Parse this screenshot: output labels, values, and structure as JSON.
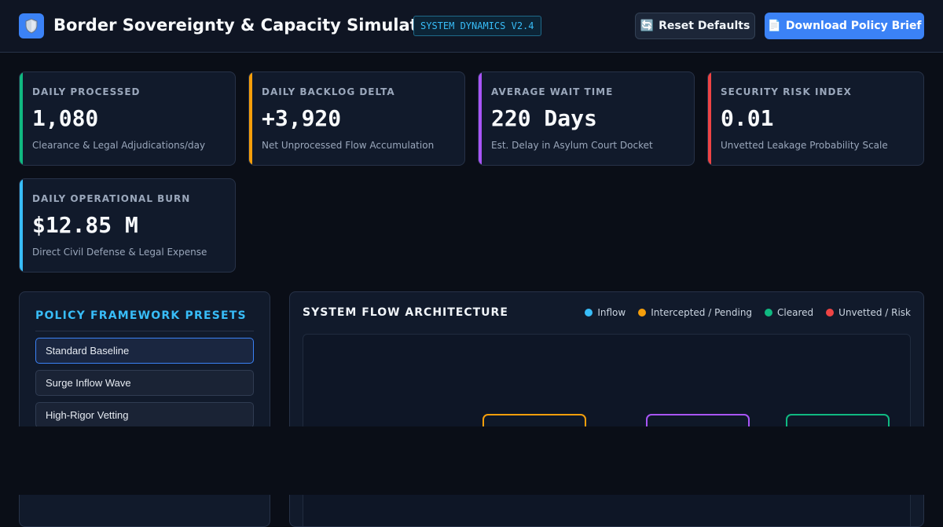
{
  "header": {
    "title": "Border Sovereignty & Capacity Simulator",
    "version_badge": "SYSTEM DYNAMICS V2.4",
    "logo_icon": "shield-icon",
    "reset_label": "Reset Defaults",
    "reset_icon": "🔄",
    "download_label": "Download Policy Brief",
    "download_icon": "📄"
  },
  "kpis": [
    {
      "label": "DAILY PROCESSED",
      "value": "1,080",
      "sub": "Clearance & Legal Adjudications/day",
      "color": "#10b981"
    },
    {
      "label": "DAILY BACKLOG DELTA",
      "value": "+3,920",
      "sub": "Net Unprocessed Flow Accumulation",
      "color": "#f59e0b"
    },
    {
      "label": "AVERAGE WAIT TIME",
      "value": "220 Days",
      "sub": "Est. Delay in Asylum Court Docket",
      "color": "#a855f7"
    },
    {
      "label": "SECURITY RISK INDEX",
      "value": "0.01",
      "sub": "Unvetted Leakage Probability Scale",
      "color": "#ef4444"
    },
    {
      "label": "DAILY OPERATIONAL BURN",
      "value": "$12.85 M",
      "sub": "Direct Civil Defense & Legal Expense",
      "color": "#38bdf8"
    }
  ],
  "presets": {
    "title": "POLICY FRAMEWORK PRESETS",
    "items": [
      {
        "label": "Standard Baseline",
        "active": true
      },
      {
        "label": "Surge Inflow Wave",
        "active": false
      },
      {
        "label": "High-Rigor Vetting",
        "active": false
      }
    ]
  },
  "flow": {
    "title": "SYSTEM FLOW ARCHITECTURE",
    "legend": [
      {
        "label": "Inflow",
        "color": "#38bdf8"
      },
      {
        "label": "Intercepted / Pending",
        "color": "#f59e0b"
      },
      {
        "label": "Cleared",
        "color": "#10b981"
      },
      {
        "label": "Unvetted / Risk",
        "color": "#ef4444"
      }
    ],
    "node_colors": [
      "#f59e0b",
      "#a855f7",
      "#10b981"
    ]
  }
}
